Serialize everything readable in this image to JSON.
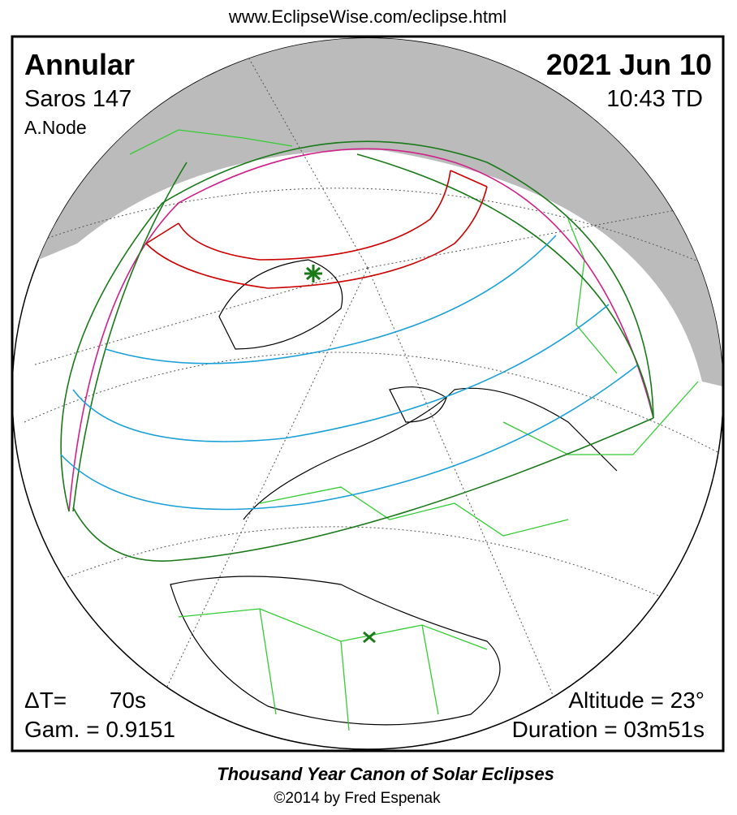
{
  "header": {
    "url": "www.EclipseWise.com/eclipse.html"
  },
  "eclipse": {
    "type": "Annular",
    "saros": "Saros 147",
    "node": "A.Node",
    "date": "2021 Jun 10",
    "time": "10:43 TD",
    "delta_t_label": "ΔT=",
    "delta_t": "70s",
    "gamma": "Gam. = 0.9151",
    "altitude": "Altitude = 23°",
    "duration": "Duration = 03m51s"
  },
  "footer": {
    "title": "Thousand Year Canon of Solar Eclipses",
    "copyright": "©2014 by Fred Espenak"
  }
}
